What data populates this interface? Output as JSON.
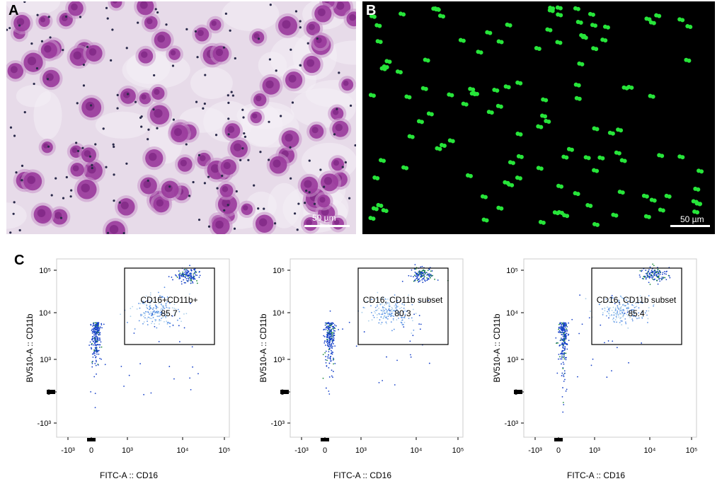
{
  "figure": {
    "panels": [
      {
        "letter": "A",
        "scale_bar": "50 µm",
        "stain": "crystal violet",
        "background": "#e7dbe9",
        "cell_color": "#9a3a9c"
      },
      {
        "letter": "B",
        "scale_bar": "50 µm",
        "stain": "fluorescent",
        "background": "#000000",
        "cell_color": "#27e53a"
      },
      {
        "letter": "C"
      }
    ]
  },
  "chart_data": [
    {
      "type": "scatter",
      "xlabel": "FITC-A :: CD16",
      "ylabel": "BV510-A :: CD11b",
      "x_ticks": [
        "-10³",
        "0",
        "10³",
        "10⁴",
        "10⁵"
      ],
      "y_ticks": [
        "10⁵",
        "10⁴",
        "10³",
        "0",
        "-10³"
      ],
      "gate_label": "CD16+CD11b+",
      "gate_value": "85.7",
      "clusters": [
        {
          "center": [
            150,
            6000
          ],
          "spread": "narrow vertical",
          "name": ""
        },
        {
          "center": [
            4000,
            7000
          ],
          "spread": "wide",
          "name": ""
        },
        {
          "center": [
            15000,
            60000
          ],
          "spread": "tight",
          "name": ""
        }
      ]
    },
    {
      "type": "scatter",
      "xlabel": "FITC-A :: CD16",
      "ylabel": "BV510-A :: CD11b",
      "x_ticks": [
        "-10³",
        "0",
        "10³",
        "10⁴",
        "10⁵"
      ],
      "y_ticks": [
        "10⁵",
        "10⁴",
        "10³",
        "0",
        "-10³"
      ],
      "gate_label": "CD16, CD11b subset",
      "gate_value": "80.3",
      "clusters": [
        {
          "center": [
            150,
            6000
          ],
          "spread": "narrow vertical",
          "name": ""
        },
        {
          "center": [
            4000,
            7000
          ],
          "spread": "wide",
          "name": ""
        },
        {
          "center": [
            15000,
            60000
          ],
          "spread": "tight",
          "name": ""
        }
      ]
    },
    {
      "type": "scatter",
      "xlabel": "FITC-A :: CD16",
      "ylabel": "BV510-A :: CD11b",
      "x_ticks": [
        "-10³",
        "0",
        "10³",
        "10⁴",
        "10⁵"
      ],
      "y_ticks": [
        "10⁵",
        "10⁴",
        "10³",
        "0",
        "-10³"
      ],
      "gate_label": "CD16, CD11b subset",
      "gate_value": "85.4",
      "clusters": [
        {
          "center": [
            150,
            6000
          ],
          "spread": "narrow vertical",
          "name": ""
        },
        {
          "center": [
            4000,
            7000
          ],
          "spread": "wide",
          "name": ""
        },
        {
          "center": [
            15000,
            60000
          ],
          "spread": "tight",
          "name": ""
        }
      ]
    }
  ]
}
